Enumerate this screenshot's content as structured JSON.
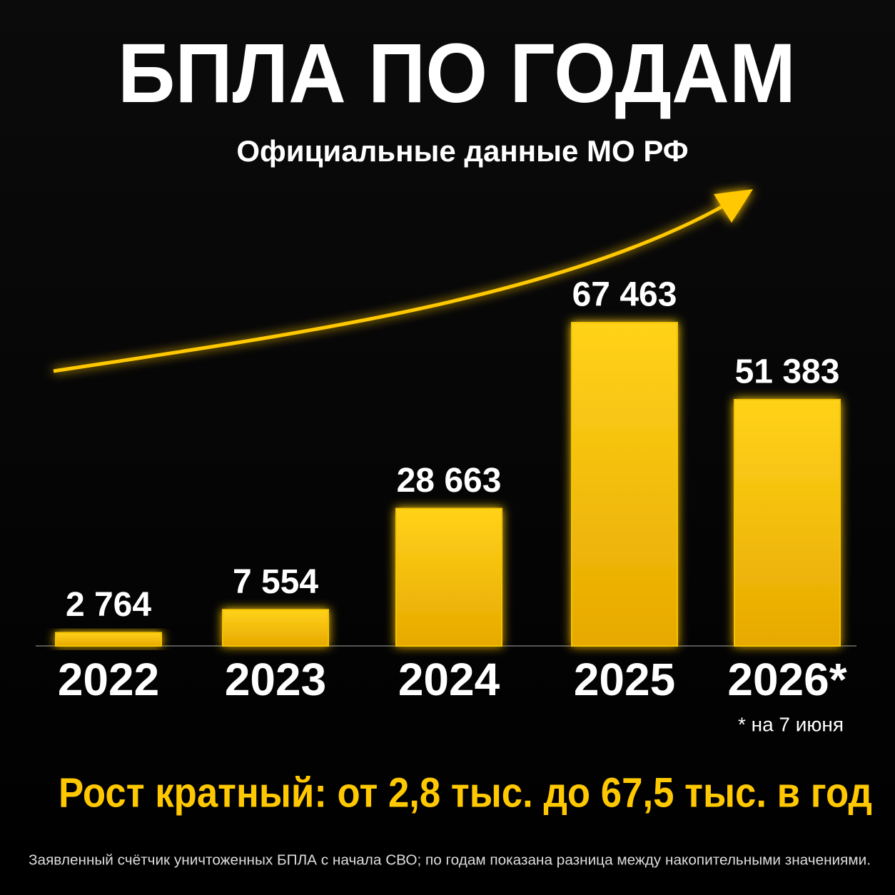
{
  "chart_data": {
    "type": "bar",
    "title": "БПЛА ПО ГОДАМ",
    "subtitle": "Официальные данные МО РФ",
    "categories": [
      "2022",
      "2023",
      "2024",
      "2025",
      "2026*"
    ],
    "values": [
      2764,
      7554,
      28663,
      67463,
      51383
    ],
    "value_labels": [
      "2 764",
      "7 554",
      "28 663",
      "67 463",
      "51 383"
    ],
    "color": "#f5c400",
    "note": "* на 7 июня",
    "summary": "Рост кратный: от 2,8 тыс. до 67,5 тыс. в год",
    "footnote": "Заявленный счётчик уничтоженных БПЛА с начала СВО; по годам показана разница между накопительными значениями."
  }
}
